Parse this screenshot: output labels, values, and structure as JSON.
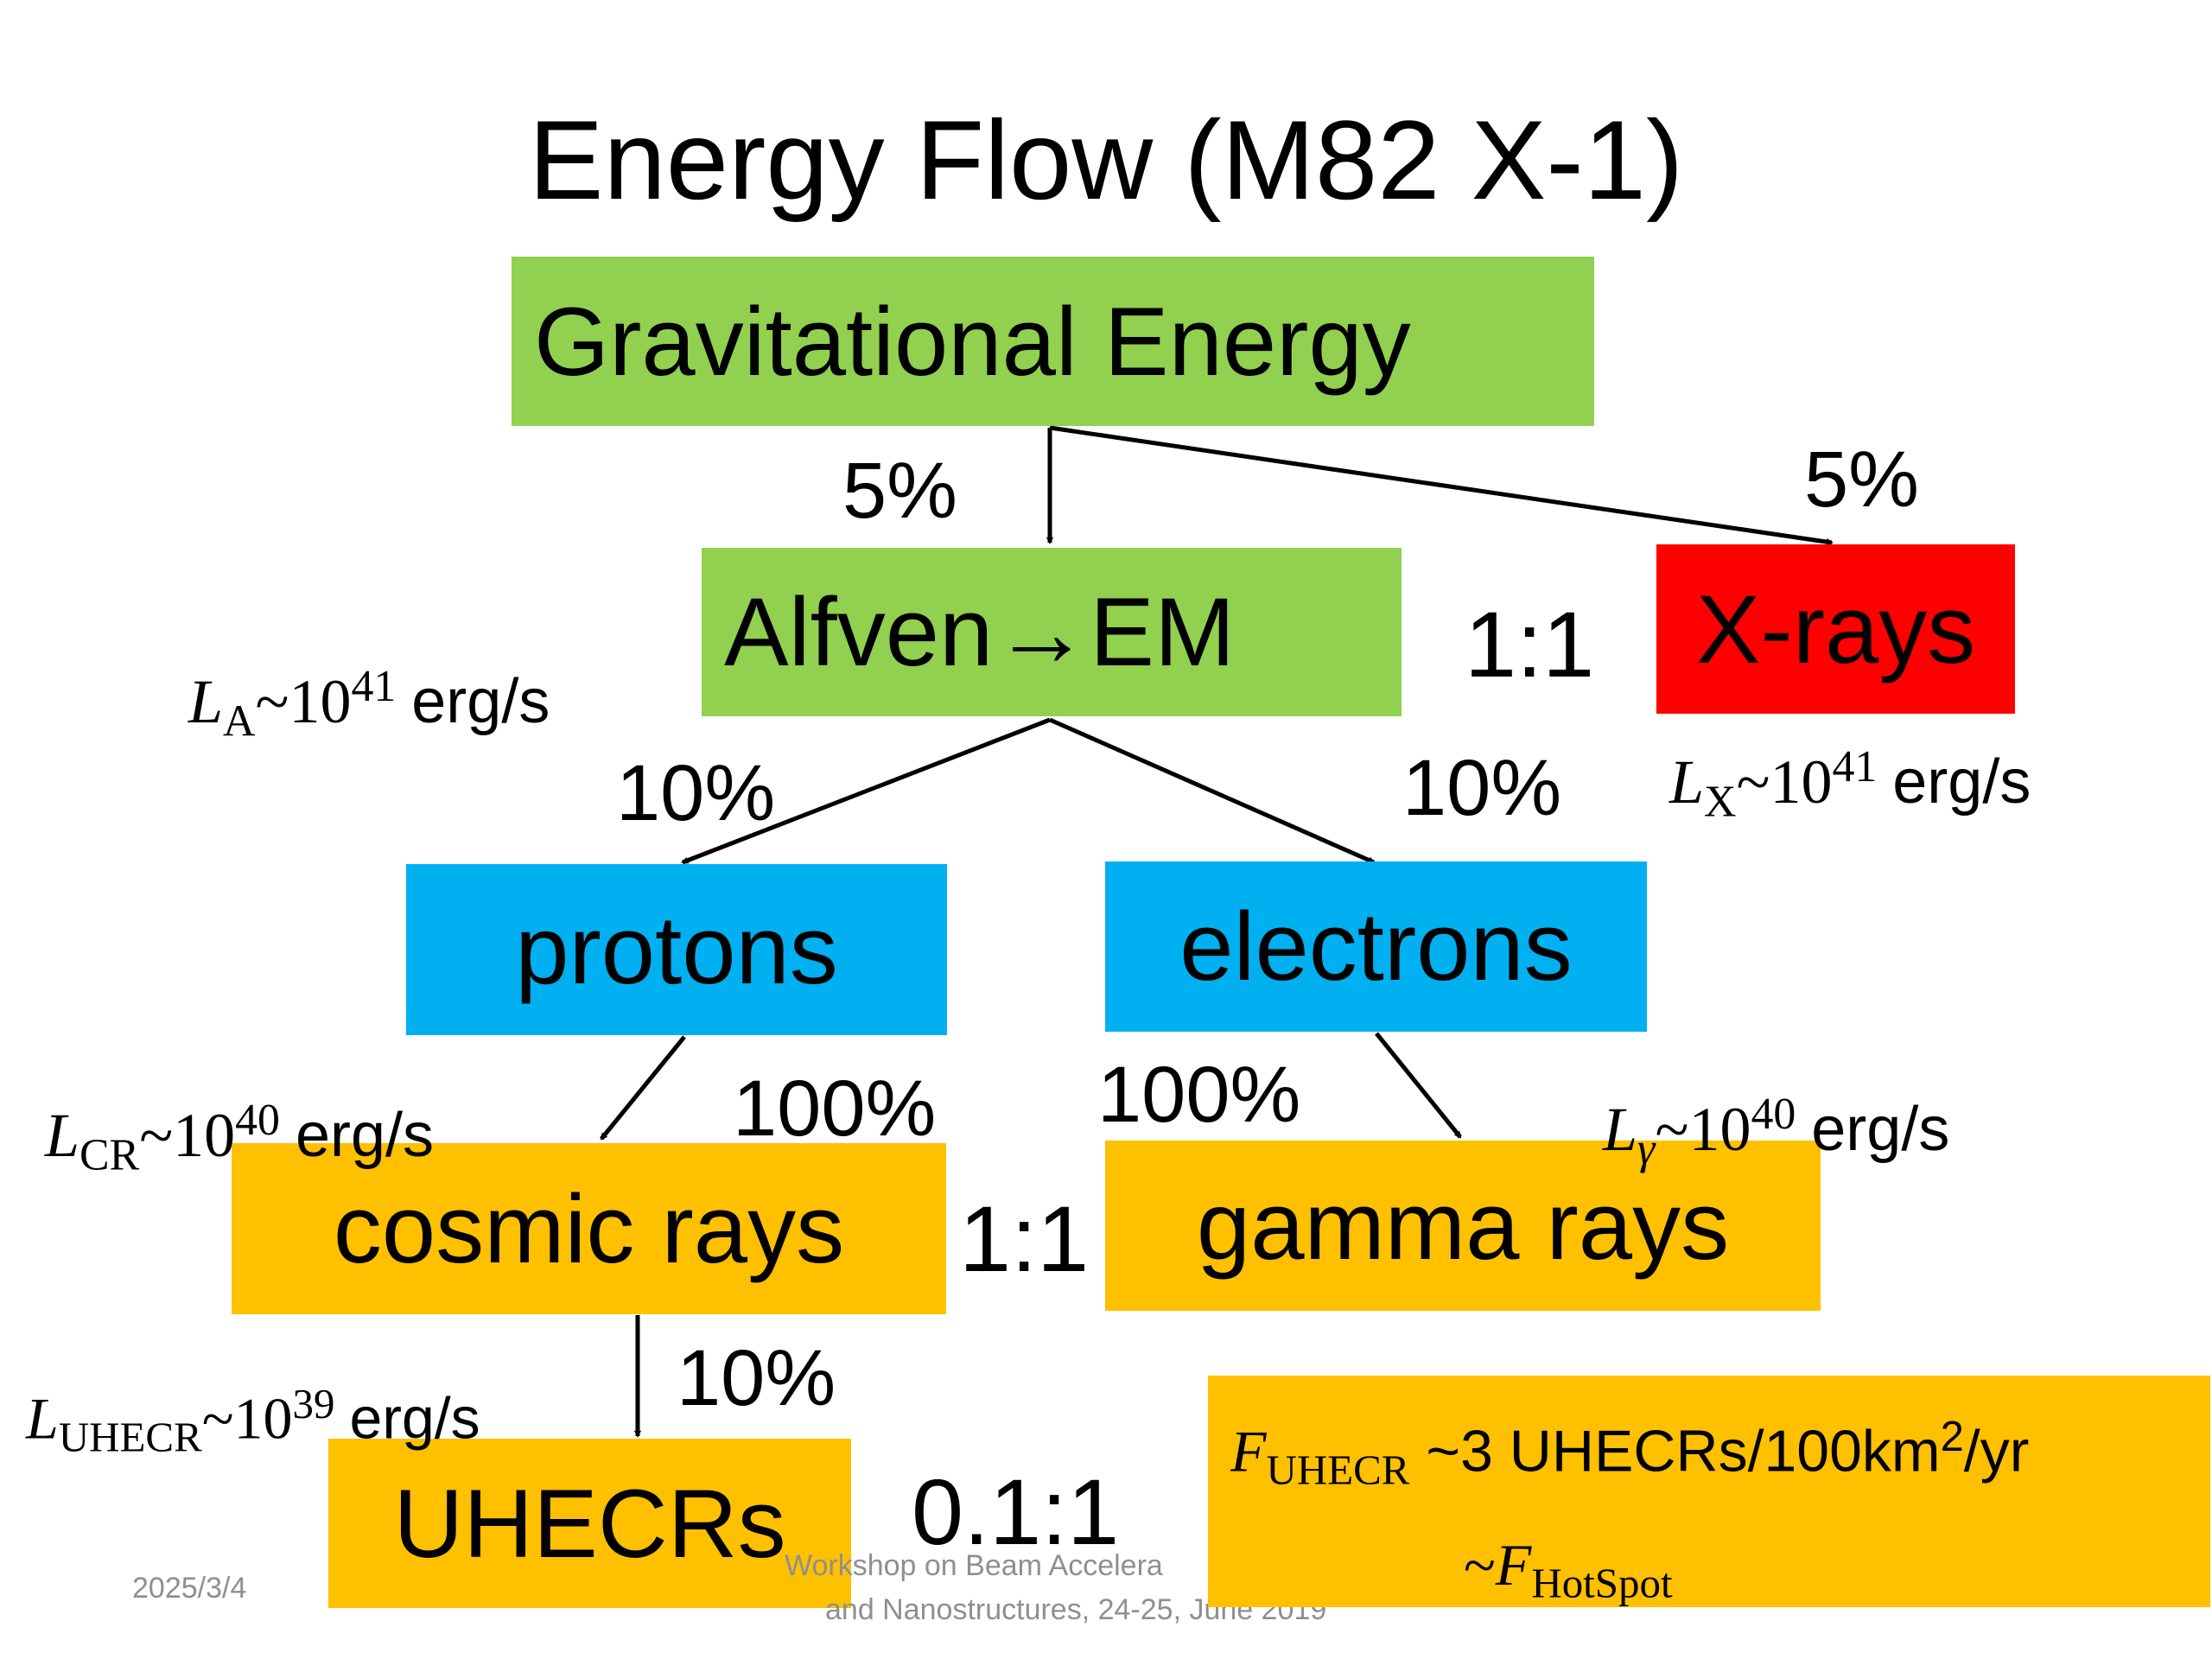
{
  "title": "Energy Flow (M82 X-1)",
  "boxes": {
    "gravitational": "Gravitational Energy",
    "alfven": "Alfven→EM",
    "xrays": "X-rays",
    "protons": "protons",
    "electrons": "electrons",
    "cosmic_rays": "cosmic rays",
    "gamma_rays": "gamma rays",
    "uhecrs": "UHECRs"
  },
  "percentages": {
    "grav_to_alfven": "5%",
    "grav_to_xrays": "5%",
    "alfven_to_protons": "10%",
    "alfven_to_electrons": "10%",
    "protons_to_cr": "100%",
    "electrons_to_gamma": "100%",
    "cr_to_uhecr": "10%"
  },
  "ratios": {
    "alfven_xrays": "1:1",
    "cr_gamma": "1:1",
    "uhecr": "0.1:1"
  },
  "luminosities": {
    "la": {
      "symbol": "L",
      "sub": "A",
      "base": "~10",
      "exp": "41",
      "unit": "erg/s"
    },
    "lx": {
      "symbol": "L",
      "sub": "X",
      "base": "~10",
      "exp": "41",
      "unit": "erg/s"
    },
    "lcr": {
      "symbol": "L",
      "sub": "CR",
      "base": "~10",
      "exp": "40",
      "unit": "erg/s"
    },
    "lgamma": {
      "symbol": "L",
      "sub": "γ",
      "base": "~10",
      "exp": "40",
      "unit": "erg/s"
    },
    "luhecr": {
      "symbol": "L",
      "sub": "UHECR",
      "base": "~10",
      "exp": "39",
      "unit": "erg/s"
    }
  },
  "flux_box": {
    "symbol": "F",
    "sub": "UHECR",
    "line1_rest": " ~3 UHECRs/100km",
    "line1_sup": "2",
    "line1_end": "/yr",
    "line2_prefix": "~",
    "line2_symbol": "F",
    "line2_sub": "HotSpot"
  },
  "footer": {
    "date": "2025/3/4",
    "workshop_line1": "Workshop on Beam Accelera",
    "workshop_line2": "and Nanostructures, 24-25, June 2019"
  },
  "colors": {
    "green": "#92D050",
    "red": "#FF0000",
    "blue": "#00B0F0",
    "orange": "#FFC000"
  }
}
